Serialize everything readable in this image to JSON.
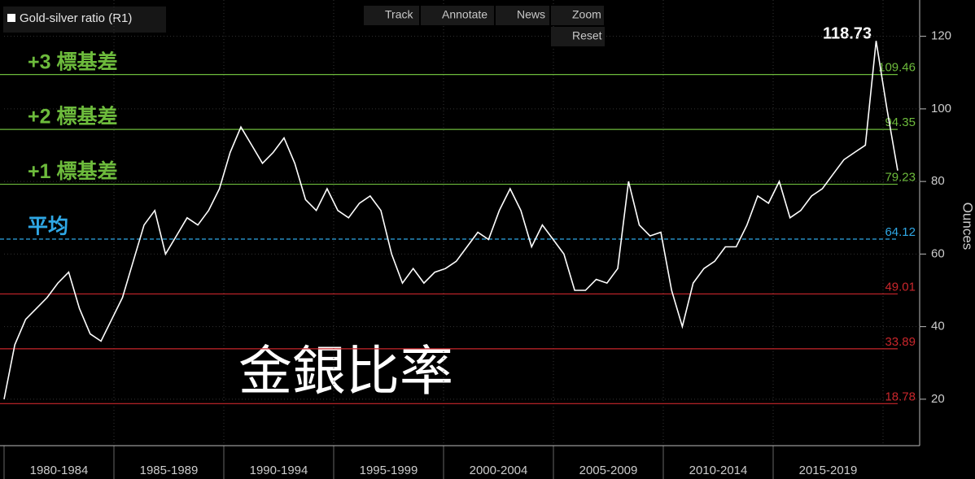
{
  "chart_data": {
    "type": "line",
    "title": "金銀比率",
    "legend": "Gold-silver ratio (R1)",
    "y_axis_label": "Ounces",
    "toolbar": [
      "Track",
      "Annotate",
      "News",
      "Zoom",
      "Reset"
    ],
    "annotation": {
      "label": "118.73",
      "value": 118.73
    },
    "periods": [
      "1980-1984",
      "1985-1989",
      "1990-1994",
      "1995-1999",
      "2000-2004",
      "2005-2009",
      "2010-2014",
      "2015-2019"
    ],
    "series": [
      {
        "name": "Gold-silver ratio",
        "color": "#ffffff",
        "values": [
          20,
          35,
          42,
          45,
          48,
          52,
          55,
          45,
          38,
          36,
          42,
          48,
          58,
          68,
          72,
          60,
          65,
          70,
          68,
          72,
          78,
          88,
          95,
          90,
          85,
          88,
          92,
          85,
          75,
          72,
          78,
          72,
          70,
          74,
          76,
          72,
          60,
          52,
          56,
          52,
          55,
          56,
          58,
          62,
          66,
          64,
          72,
          78,
          72,
          62,
          68,
          64,
          60,
          50,
          50,
          53,
          52,
          56,
          80,
          68,
          65,
          66,
          50,
          40,
          52,
          56,
          58,
          62,
          62,
          68,
          76,
          74,
          80,
          70,
          72,
          76,
          78,
          82,
          86,
          88,
          90,
          118.73,
          100,
          83
        ]
      }
    ],
    "reference_lines": [
      {
        "value": 109.46,
        "label": "+3 標基差",
        "color": "#6dbb3c"
      },
      {
        "value": 94.35,
        "label": "+2 標基差",
        "color": "#6dbb3c"
      },
      {
        "value": 79.23,
        "label": "+1 標基差",
        "color": "#6dbb3c"
      },
      {
        "value": 64.12,
        "label": "平均",
        "color": "#2fa8e6",
        "dashed": true
      },
      {
        "value": 49.01,
        "color": "#c8262b"
      },
      {
        "value": 33.89,
        "color": "#c8262b"
      },
      {
        "value": 18.78,
        "color": "#c8262b"
      }
    ],
    "ylim": [
      7.2,
      130
    ],
    "yticks": [
      20,
      40,
      60,
      80,
      100,
      120
    ],
    "axis_color": "#bbbbbb"
  }
}
